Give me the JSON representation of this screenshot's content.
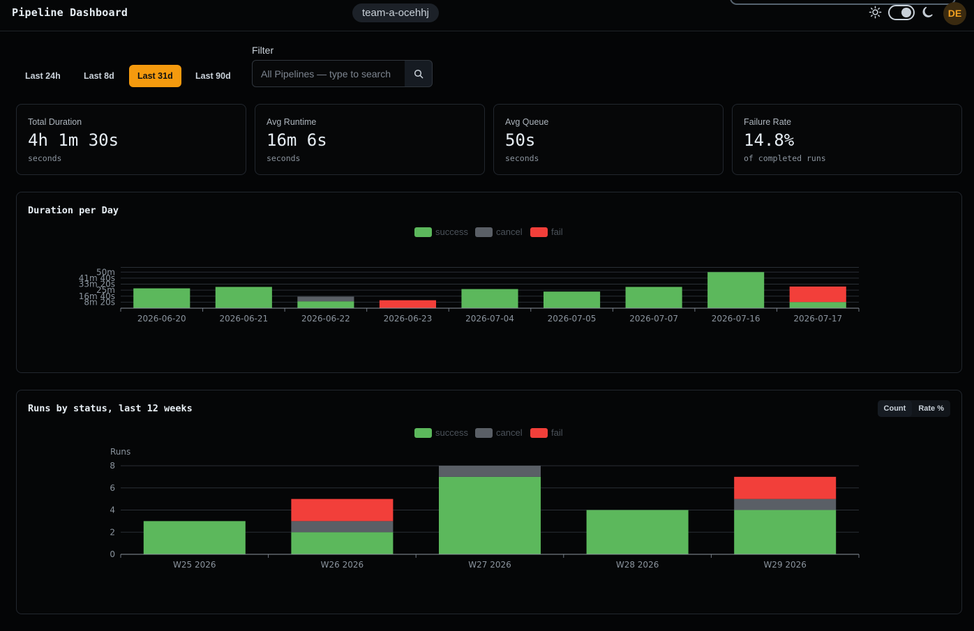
{
  "header": {
    "title": "Pipeline Dashboard",
    "team": "team-a-ocehhj",
    "avatar_initials": "DE",
    "icons": {
      "theme_light": "sun-icon",
      "theme_dark": "moon-icon"
    }
  },
  "ranges": {
    "items": [
      "Last 24h",
      "Last 8d",
      "Last 31d",
      "Last 90d"
    ],
    "active": "Last 31d"
  },
  "filter": {
    "label": "Filter",
    "placeholder": "All Pipelines — type to search",
    "value": "",
    "button_icon": "search-icon"
  },
  "stats": [
    {
      "label": "Total Duration",
      "value": "4h 1m 30s",
      "sub": "seconds"
    },
    {
      "label": "Avg Runtime",
      "value": "16m 6s",
      "sub": "seconds"
    },
    {
      "label": "Avg Queue",
      "value": "50s",
      "sub": "seconds"
    },
    {
      "label": "Failure Rate",
      "value": "14.8%",
      "sub": "of completed runs"
    }
  ],
  "colors": {
    "success": "#5cb85c",
    "cancel": "#5a5f66",
    "fail": "#f23f3a",
    "accent": "#f59a0e"
  },
  "legend": [
    "success",
    "cancel",
    "fail"
  ],
  "chart_data": [
    {
      "type": "bar",
      "stacked": true,
      "title": "Duration per Day",
      "categories": [
        "2026-06-20",
        "2026-06-21",
        "2026-06-22",
        "2026-06-23",
        "2026-07-04",
        "2026-07-05",
        "2026-07-07",
        "2026-07-16",
        "2026-07-17"
      ],
      "series": [
        {
          "name": "success",
          "values": [
            27.5,
            29.5,
            9.5,
            0,
            26.5,
            23,
            29.5,
            50,
            8.5
          ]
        },
        {
          "name": "cancel",
          "values": [
            0,
            0,
            6.5,
            0,
            0,
            0,
            0,
            0,
            0
          ]
        },
        {
          "name": "fail",
          "values": [
            0,
            0,
            0,
            11,
            0,
            0,
            0,
            0,
            21.5
          ]
        }
      ],
      "ylabel": "",
      "yticks": [
        8.333,
        16.667,
        25,
        33.333,
        41.667,
        50
      ],
      "ytick_labels": [
        "8m 20s",
        "16m 40s",
        "25m",
        "33m 20s",
        "41m 40s",
        "50m"
      ],
      "ylim": [
        0,
        58
      ],
      "grid": true,
      "legend_position": "top"
    },
    {
      "type": "bar",
      "stacked": true,
      "title": "Runs by status, last 12 weeks",
      "categories": [
        "W25 2026",
        "W26 2026",
        "W27 2026",
        "W28 2026",
        "W29 2026"
      ],
      "series": [
        {
          "name": "success",
          "values": [
            3,
            2,
            7,
            4,
            4
          ]
        },
        {
          "name": "cancel",
          "values": [
            0,
            1,
            1,
            0,
            1
          ]
        },
        {
          "name": "fail",
          "values": [
            0,
            2,
            0,
            0,
            2
          ]
        }
      ],
      "ylabel": "Runs",
      "yticks": [
        0,
        2,
        4,
        6,
        8
      ],
      "ytick_labels": [
        "0",
        "2",
        "4",
        "6",
        "8"
      ],
      "ylim": [
        0,
        8
      ],
      "grid": true,
      "legend_position": "top",
      "modes": [
        "Count",
        "Rate %"
      ],
      "active_mode": "Count"
    }
  ]
}
